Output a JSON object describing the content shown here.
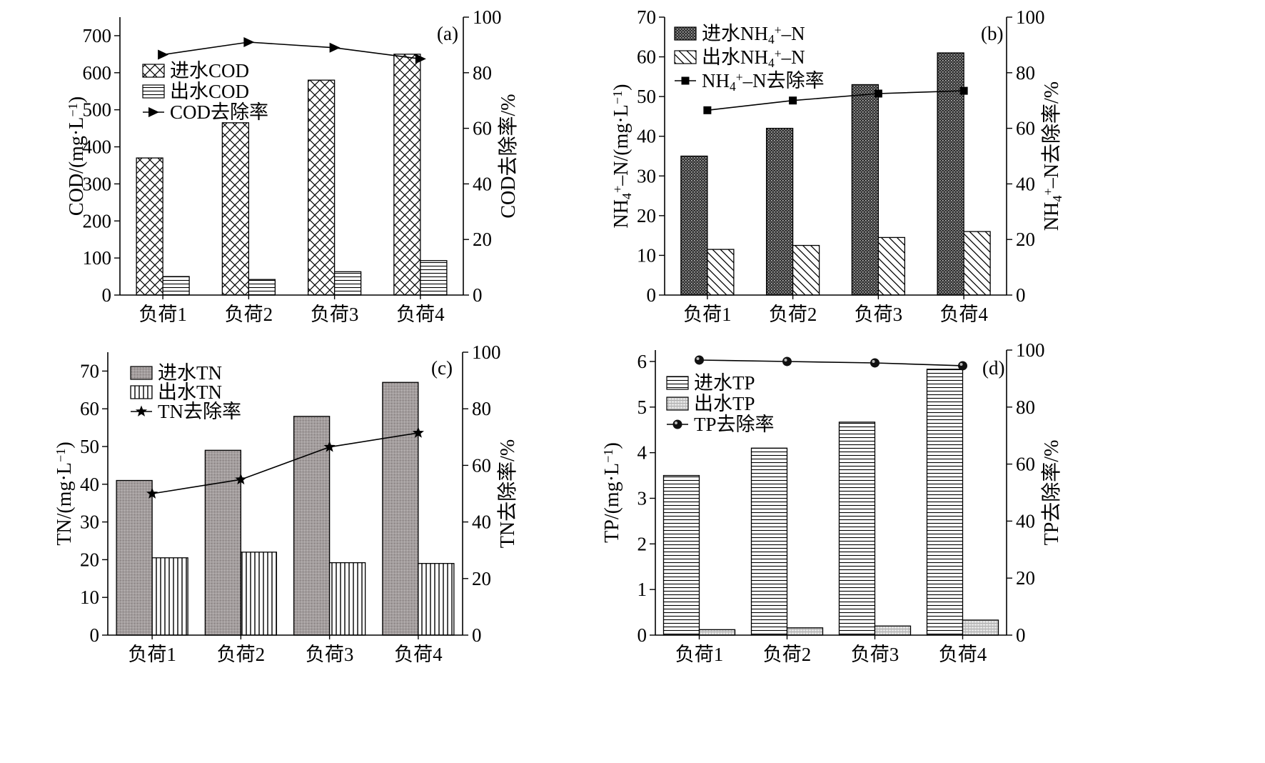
{
  "chart_data": [
    {
      "type": "bar",
      "panel_label": "(a)",
      "categories": [
        "负荷1",
        "负荷2",
        "负荷3",
        "负荷4"
      ],
      "ylabel": "COD/(mg·L⁻¹)",
      "y2label": "COD去除率/%",
      "ylim": [
        0,
        750
      ],
      "yticks": [
        0,
        100,
        200,
        300,
        400,
        500,
        600,
        700
      ],
      "y2lim": [
        0,
        100
      ],
      "y2ticks": [
        0,
        20,
        40,
        60,
        80,
        100
      ],
      "legend_position": "top-left",
      "series": [
        {
          "name": "进水COD",
          "type": "bar",
          "pattern": "crosshatch",
          "values": [
            370,
            465,
            580,
            650
          ]
        },
        {
          "name": "出水COD",
          "type": "bar",
          "pattern": "horizontal",
          "values": [
            50,
            42,
            63,
            93
          ]
        },
        {
          "name": "COD去除率",
          "type": "line",
          "axis": "right",
          "marker": "triangle-right",
          "values": [
            86.5,
            91,
            89,
            85
          ]
        }
      ]
    },
    {
      "type": "bar",
      "panel_label": "(b)",
      "categories": [
        "负荷1",
        "负荷2",
        "负荷3",
        "负荷4"
      ],
      "ylabel": "NH₄⁺–N/(mg·L⁻¹)",
      "y2label": "NH₄⁺–N去除率/%",
      "ylim": [
        0,
        70
      ],
      "yticks": [
        0,
        10,
        20,
        30,
        40,
        50,
        60,
        70
      ],
      "y2lim": [
        0,
        100
      ],
      "y2ticks": [
        0,
        20,
        40,
        60,
        80,
        100
      ],
      "legend_position": "top-left",
      "series": [
        {
          "name": "进水NH₄⁺–N",
          "type": "bar",
          "pattern": "dense-dots",
          "values": [
            35,
            42,
            53,
            61
          ]
        },
        {
          "name": "出水NH₄⁺–N",
          "type": "bar",
          "pattern": "diagonal",
          "values": [
            11.5,
            12.5,
            14.5,
            16
          ]
        },
        {
          "name": "NH₄⁺–N去除率",
          "type": "line",
          "axis": "right",
          "marker": "square",
          "values": [
            66.5,
            70,
            72.5,
            73.5
          ]
        }
      ]
    },
    {
      "type": "bar",
      "panel_label": "(c)",
      "categories": [
        "负荷1",
        "负荷2",
        "负荷3",
        "负荷4"
      ],
      "ylabel": "TN/(mg·L⁻¹)",
      "y2label": "TN去除率/%",
      "ylim": [
        0,
        75
      ],
      "yticks": [
        0,
        10,
        20,
        30,
        40,
        50,
        60,
        70
      ],
      "y2lim": [
        0,
        100
      ],
      "y2ticks": [
        0,
        20,
        40,
        60,
        80,
        100
      ],
      "legend_position": "top-left",
      "series": [
        {
          "name": "进水TN",
          "type": "bar",
          "pattern": "gray",
          "values": [
            41,
            49,
            58,
            67
          ]
        },
        {
          "name": "出水TN",
          "type": "bar",
          "pattern": "vertical",
          "values": [
            20.5,
            22,
            19.2,
            19
          ]
        },
        {
          "name": "TN去除率",
          "type": "line",
          "axis": "right",
          "marker": "star",
          "values": [
            50,
            55,
            66.5,
            71.5
          ]
        }
      ]
    },
    {
      "type": "bar",
      "panel_label": "(d)",
      "categories": [
        "负荷1",
        "负荷2",
        "负荷3",
        "负荷4"
      ],
      "ylabel": "TP/(mg·L⁻¹)",
      "y2label": "TP去除率/%",
      "ylim": [
        0,
        6.25
      ],
      "yticks": [
        0,
        1,
        2,
        3,
        4,
        5,
        6
      ],
      "y2lim": [
        0,
        100
      ],
      "y2ticks": [
        0,
        20,
        40,
        60,
        80,
        100
      ],
      "legend_position": "top-left",
      "series": [
        {
          "name": "进水TP",
          "type": "bar",
          "pattern": "horizontal",
          "values": [
            3.5,
            4.1,
            4.67,
            5.83
          ]
        },
        {
          "name": "出水TP",
          "type": "bar",
          "pattern": "light-grid",
          "values": [
            0.12,
            0.16,
            0.2,
            0.33
          ]
        },
        {
          "name": "TP去除率",
          "type": "line",
          "axis": "right",
          "marker": "sphere",
          "values": [
            96.5,
            96,
            95.5,
            94.5
          ]
        }
      ]
    }
  ]
}
